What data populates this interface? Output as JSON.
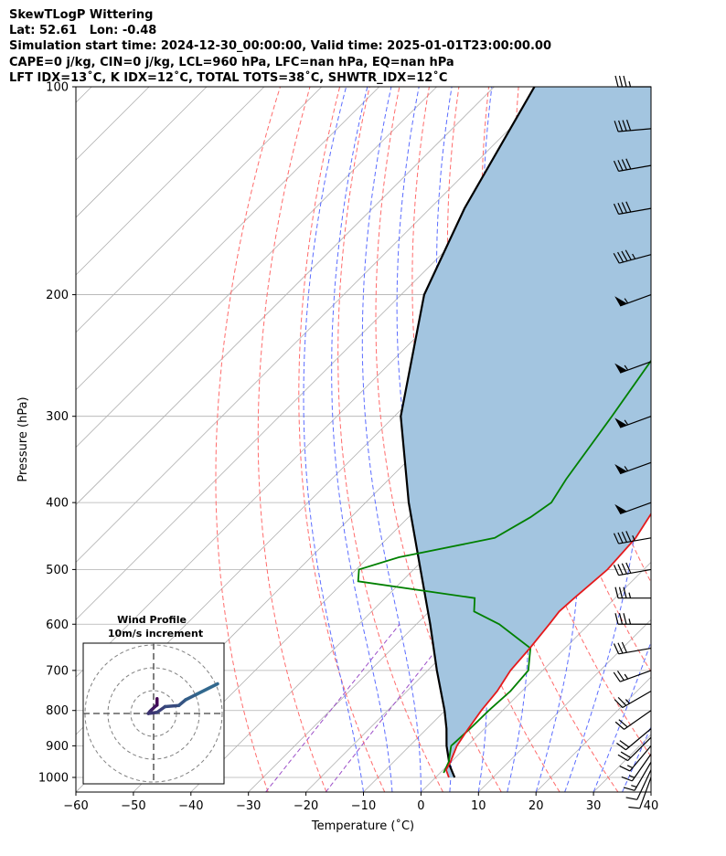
{
  "header": {
    "lines": [
      "SkewTLogP Wittering",
      "Lat: 52.61   Lon: -0.48",
      "Simulation start time: 2024-12-30_00:00:00, Valid time: 2025-01-01T23:00:00.00",
      "CAPE=0 j/kg, CIN=0 j/kg, LCL=960 hPa, LFC=nan hPa, EQ=nan hPa",
      "LFT IDX=13˚C, K IDX=12˚C, TOTAL TOTS=38˚C, SHWTR_IDX=12˚C"
    ]
  },
  "chart_data": {
    "type": "skew-t log-p",
    "xlabel": "Temperature (˚C)",
    "ylabel": "Pressure (hPa)",
    "xlim": [
      -60,
      40
    ],
    "ylim": [
      1050,
      100
    ],
    "x_ticks": [
      -60,
      -50,
      -40,
      -30,
      -20,
      -10,
      0,
      10,
      20,
      30,
      40
    ],
    "y_ticks": [
      100,
      200,
      300,
      400,
      500,
      600,
      700,
      800,
      900,
      1000
    ],
    "grid": true,
    "colors": {
      "temperature": "#e41a1c",
      "dewpoint": "#008000",
      "parcel": "#000000",
      "shading": "#a3c5e0",
      "dry_adiabats": "#ff6b6b",
      "moist_adiabats": "#5b6cff",
      "isotherms": "#b0b0b0",
      "mixing_ratio": "#9c4fc8"
    },
    "temperature": {
      "p": [
        1000,
        975,
        950,
        900,
        850,
        800,
        750,
        700,
        650,
        600,
        575,
        550,
        500,
        450,
        400,
        350,
        300,
        280,
        250,
        230,
        210,
        200,
        190,
        170,
        150,
        130,
        115,
        100
      ],
      "t": [
        2.3,
        0.5,
        -0.1,
        -1.8,
        -2.8,
        -3.7,
        -4.3,
        -5.6,
        -6.1,
        -6.9,
        -7.4,
        -7.1,
        -6.3,
        -6.9,
        -9.1,
        -12.8,
        -17.5,
        -18.4,
        -19.4,
        -19.6,
        -19.1,
        -18.6,
        -17.5,
        -14.4,
        -11.5,
        -9.2,
        -7.5,
        -7.0
      ]
    },
    "dewpoint": {
      "p": [
        985,
        950,
        900,
        850,
        800,
        750,
        700,
        650,
        600,
        575,
        550,
        520,
        500,
        480,
        450,
        420,
        400,
        370,
        350,
        300,
        250,
        220,
        200,
        190,
        180,
        170,
        155,
        130,
        115,
        100
      ],
      "t": [
        0.6,
        -0.4,
        -2.8,
        -2.5,
        -2.4,
        -2.0,
        -2.5,
        -6.0,
        -15.6,
        -22.2,
        -24.4,
        -47.6,
        -49.5,
        -44.7,
        -31.4,
        -28.8,
        -27.7,
        -29.2,
        -30.0,
        -32.2,
        -35.0,
        -37.0,
        -37.9,
        -38.8,
        -39.5,
        -39.9,
        -40.7,
        -37.3,
        -31.6,
        -26.0
      ]
    },
    "parcel": {
      "p": [
        1000,
        980,
        960,
        900,
        850,
        800,
        700,
        600,
        500,
        400,
        300,
        200,
        150,
        100
      ],
      "t": [
        3.3,
        1.8,
        0.3,
        -3.6,
        -6.6,
        -10.1,
        -18.4,
        -27.6,
        -38.8,
        -52.5,
        -68.9,
        -86.0,
        -94.0,
        -103.0
      ]
    },
    "wind_barbs": {
      "p": [
        1000,
        975,
        950,
        925,
        900,
        875,
        850,
        800,
        750,
        700,
        650,
        600,
        550,
        500,
        450,
        400,
        350,
        300,
        250,
        200,
        175,
        150,
        130,
        115,
        100
      ],
      "speed_kt": [
        10,
        12,
        15,
        18,
        18,
        20,
        20,
        22,
        25,
        25,
        30,
        35,
        35,
        40,
        45,
        50,
        55,
        55,
        55,
        55,
        45,
        40,
        40,
        40,
        35
      ],
      "direction_deg": [
        200,
        205,
        210,
        215,
        220,
        225,
        230,
        235,
        240,
        250,
        260,
        270,
        270,
        260,
        260,
        250,
        250,
        250,
        250,
        250,
        255,
        260,
        260,
        265,
        270
      ]
    },
    "inset": {
      "title": "Wind Profile",
      "subtitle": "10m/s increment",
      "u": [
        1.5,
        1.5,
        0.6,
        -1.0,
        -1.5,
        -2.3,
        1.5,
        5.0,
        11.0,
        14.0,
        19.0,
        28.0
      ],
      "v": [
        6.5,
        3.7,
        3.0,
        1.5,
        1.0,
        0.0,
        0.5,
        3.0,
        3.5,
        6.0,
        8.5,
        13.0
      ]
    }
  }
}
